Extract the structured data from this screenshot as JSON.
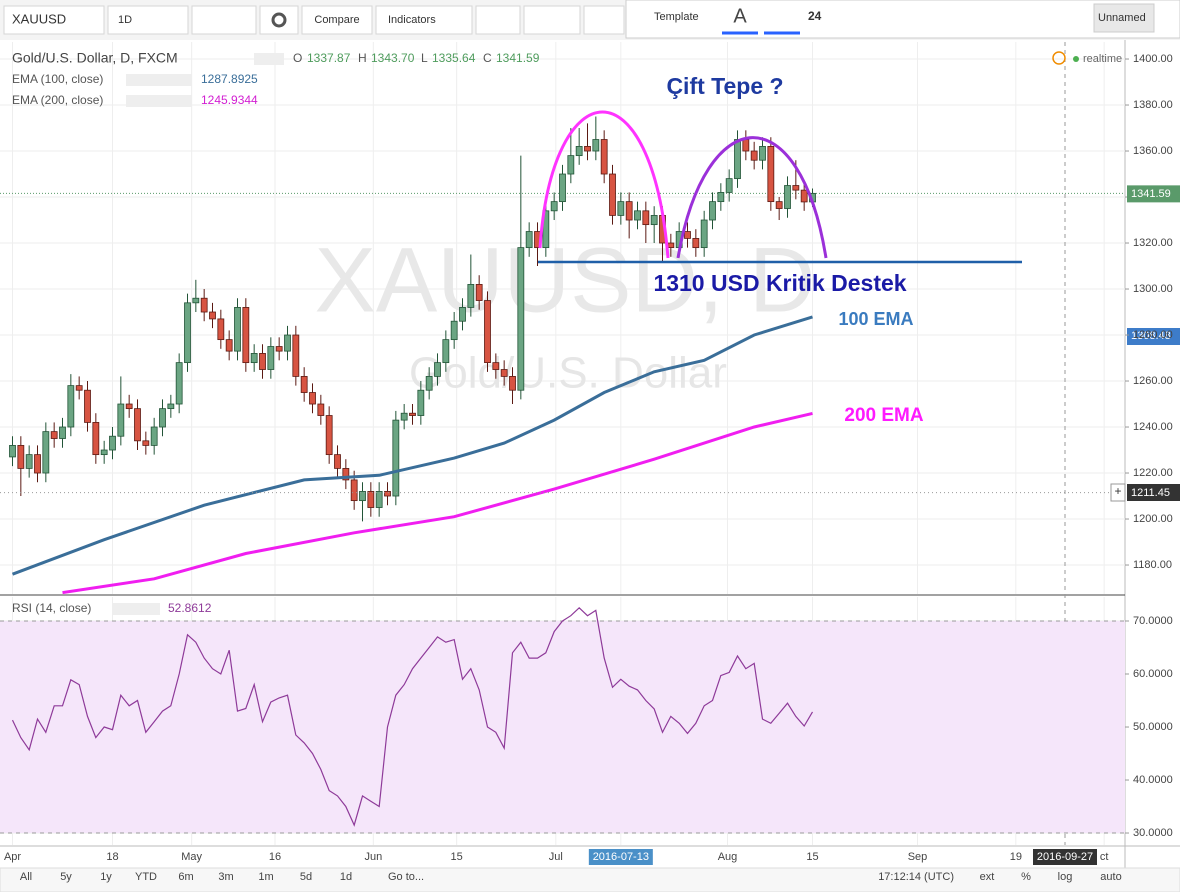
{
  "toolbar": {
    "symbol": "XAUUSD",
    "interval": "1D",
    "compare": "Compare",
    "indicators": "Indicators",
    "template": "Template",
    "font_size": "24",
    "layout_name": "Unnamed"
  },
  "legend": {
    "title": "Gold/U.S. Dollar, D, FXCM",
    "ohlc": [
      {
        "label": "O",
        "value": "1337.87"
      },
      {
        "label": "H",
        "value": "1343.70"
      },
      {
        "label": "L",
        "value": "1335.64"
      },
      {
        "label": "C",
        "value": "1341.59"
      }
    ],
    "ema100": {
      "name": "EMA (100, close)",
      "value": "1287.8925"
    },
    "ema200": {
      "name": "EMA (200, close)",
      "value": "1245.9344"
    },
    "rsi": {
      "name": "RSI (14, close)",
      "value": "52.8612"
    }
  },
  "status": "realtime",
  "watermark": {
    "symbol": "XAUUSD, D",
    "description": "Gold/U.S. Dollar"
  },
  "axis_labels": {
    "ema_label": "1308.48"
  },
  "bottom_bar": {
    "ranges": [
      "All",
      "5y",
      "1y",
      "YTD",
      "6m",
      "3m",
      "1m",
      "5d",
      "1d"
    ],
    "goto": "Go to...",
    "time": "17:12:14 (UTC)",
    "options": [
      "ext",
      "%",
      "log",
      "auto"
    ]
  },
  "chart_data": [
    {
      "type": "candlestick",
      "title": "Çift Tepe ?",
      "annotation": "1310 USD Kritik Destek",
      "up_color": "#6ba583",
      "down_color": "#d75442",
      "open": [
        1227,
        1232,
        1222,
        1228,
        1220,
        1238,
        1235,
        1240,
        1258,
        1256,
        1242,
        1228,
        1230,
        1236,
        1250,
        1248,
        1234,
        1232,
        1240,
        1248,
        1250,
        1268,
        1294,
        1296,
        1290,
        1287,
        1278,
        1273,
        1292,
        1268,
        1272,
        1265,
        1275,
        1273,
        1280,
        1262,
        1255,
        1250,
        1245,
        1228,
        1222,
        1217,
        1208,
        1212,
        1205,
        1212,
        1210,
        1243,
        1246,
        1245,
        1256,
        1262,
        1268,
        1278,
        1286,
        1292,
        1302,
        1295,
        1268,
        1265,
        1262,
        1256,
        1318,
        1325,
        1318,
        1334,
        1338,
        1350,
        1358,
        1362,
        1360,
        1365,
        1350,
        1332,
        1338,
        1330,
        1334,
        1328,
        1332,
        1320,
        1318,
        1325,
        1322,
        1318,
        1330,
        1338,
        1342,
        1348,
        1365,
        1360,
        1356,
        1362,
        1338,
        1335,
        1345,
        1343,
        1337.87
      ],
      "high": [
        1236,
        1236,
        1232,
        1232,
        1242,
        1242,
        1244,
        1263,
        1262,
        1260,
        1246,
        1234,
        1240,
        1262,
        1254,
        1252,
        1238,
        1244,
        1252,
        1254,
        1272,
        1298,
        1304,
        1300,
        1294,
        1291,
        1282,
        1296,
        1296,
        1276,
        1276,
        1279,
        1279,
        1284,
        1284,
        1266,
        1259,
        1254,
        1249,
        1232,
        1226,
        1221,
        1216,
        1216,
        1216,
        1216,
        1247,
        1250,
        1250,
        1260,
        1266,
        1272,
        1282,
        1290,
        1296,
        1315,
        1306,
        1299,
        1272,
        1269,
        1266,
        1358,
        1329,
        1329,
        1338,
        1342,
        1354,
        1370,
        1370,
        1372,
        1375,
        1369,
        1354,
        1342,
        1342,
        1338,
        1338,
        1336,
        1336,
        1324,
        1329,
        1329,
        1326,
        1334,
        1342,
        1346,
        1352,
        1369,
        1369,
        1364,
        1366,
        1366,
        1340,
        1349,
        1356,
        1347,
        1343.7
      ],
      "low": [
        1223,
        1210,
        1218,
        1216,
        1216,
        1231,
        1231,
        1236,
        1252,
        1238,
        1224,
        1224,
        1226,
        1232,
        1244,
        1230,
        1228,
        1228,
        1236,
        1244,
        1246,
        1264,
        1290,
        1286,
        1283,
        1274,
        1269,
        1269,
        1264,
        1264,
        1261,
        1261,
        1269,
        1269,
        1258,
        1251,
        1246,
        1241,
        1224,
        1218,
        1213,
        1204,
        1199,
        1201,
        1201,
        1206,
        1206,
        1239,
        1241,
        1241,
        1252,
        1258,
        1264,
        1274,
        1282,
        1288,
        1291,
        1264,
        1261,
        1258,
        1250,
        1252,
        1314,
        1310,
        1314,
        1330,
        1334,
        1346,
        1354,
        1356,
        1356,
        1346,
        1328,
        1328,
        1322,
        1326,
        1320,
        1320,
        1312,
        1314,
        1314,
        1318,
        1314,
        1314,
        1326,
        1334,
        1338,
        1344,
        1356,
        1352,
        1352,
        1334,
        1330,
        1331,
        1339,
        1334,
        1335.64
      ],
      "close": [
        1232,
        1222,
        1228,
        1220,
        1238,
        1235,
        1240,
        1258,
        1256,
        1242,
        1228,
        1230,
        1236,
        1250,
        1248,
        1234,
        1232,
        1240,
        1248,
        1250,
        1268,
        1294,
        1296,
        1290,
        1287,
        1278,
        1273,
        1292,
        1268,
        1272,
        1265,
        1275,
        1273,
        1280,
        1262,
        1255,
        1250,
        1245,
        1228,
        1222,
        1217,
        1208,
        1212,
        1205,
        1212,
        1210,
        1243,
        1246,
        1245,
        1256,
        1262,
        1268,
        1278,
        1286,
        1292,
        1302,
        1295,
        1268,
        1265,
        1262,
        1256,
        1318,
        1325,
        1318,
        1334,
        1338,
        1350,
        1358,
        1362,
        1360,
        1365,
        1350,
        1332,
        1338,
        1330,
        1334,
        1328,
        1332,
        1320,
        1318,
        1325,
        1322,
        1318,
        1330,
        1338,
        1342,
        1348,
        1365,
        1360,
        1356,
        1362,
        1338,
        1335,
        1345,
        1343,
        1337.87,
        1341.59
      ],
      "series": [
        {
          "name": "100 EMA",
          "color": "#3a6e99",
          "x": [
            0,
            11,
            23,
            35,
            44,
            53,
            59,
            65,
            71,
            77,
            83,
            89,
            96
          ],
          "values": [
            1176,
            1191,
            1206,
            1217,
            1219,
            1226.5,
            1233,
            1243,
            1255,
            1264,
            1269,
            1280,
            1287.8925
          ]
        },
        {
          "name": "200 EMA",
          "color": "#f01ef0",
          "x": [
            6,
            17,
            28,
            41,
            53,
            65,
            77,
            89,
            96
          ],
          "values": [
            1168,
            1174,
            1185,
            1194,
            1201,
            1213,
            1226,
            1240,
            1245.9344
          ]
        }
      ],
      "crosshair": {
        "x": {
          "value": 126.3,
          "label": "2016-09-27"
        },
        "y": 1211.45
      },
      "xlim": [
        -1.5,
        133.5
      ],
      "xticks": [
        {
          "value": 0,
          "label": "Apr"
        },
        {
          "value": 12,
          "label": "18"
        },
        {
          "value": 21.5,
          "label": "May"
        },
        {
          "value": 31.5,
          "label": "16"
        },
        {
          "value": 43.3,
          "label": "Jun"
        },
        {
          "value": 53.3,
          "label": "15"
        },
        {
          "value": 65.2,
          "label": "Jul"
        },
        {
          "value": 73,
          "label": "2016-07-13",
          "highlight": true
        },
        {
          "value": 85.8,
          "label": "Aug"
        },
        {
          "value": 96,
          "label": "15"
        },
        {
          "value": 108.6,
          "label": "Sep"
        },
        {
          "value": 120.4,
          "label": "19"
        },
        {
          "value": 131,
          "label": "ct"
        }
      ],
      "ylim": [
        1167.4,
        1407.4
      ],
      "yticks": [
        {
          "value": 1180,
          "label": "1180.00"
        },
        {
          "value": 1200,
          "label": "1200.00"
        },
        {
          "value": 1220,
          "label": "1220.00"
        },
        {
          "value": 1240,
          "label": "1240.00"
        },
        {
          "value": 1260,
          "label": "1260.00"
        },
        {
          "value": 1280,
          "label": "1280.00"
        },
        {
          "value": 1300,
          "label": "1300.00"
        },
        {
          "value": 1320,
          "label": "1320.00"
        },
        {
          "value": 1340,
          "label": "1340.00"
        },
        {
          "value": 1360,
          "label": "1360.00"
        },
        {
          "value": 1380,
          "label": "1380.00"
        },
        {
          "value": 1400,
          "label": "1400.00"
        }
      ],
      "grid": true
    },
    {
      "type": "line",
      "band_color": "#f5e6fa",
      "series": [
        {
          "color": "#8e3a99",
          "values": [
            51.3,
            48,
            45.7,
            51.5,
            49,
            54,
            54,
            58.9,
            58,
            52,
            48,
            50,
            49.5,
            56,
            54,
            55,
            49,
            51,
            53,
            54,
            60,
            67.4,
            66,
            63,
            61,
            60,
            64.5,
            53,
            53.5,
            58,
            51,
            54.7,
            55.5,
            56,
            48.5,
            47,
            45,
            42,
            38,
            37,
            35,
            31.5,
            37,
            36,
            35,
            50,
            56,
            58,
            61,
            63,
            65,
            67,
            66,
            66.5,
            59,
            61,
            57,
            50,
            49,
            46,
            64,
            66,
            63,
            63,
            64,
            68,
            70,
            71,
            72.5,
            71,
            72,
            63,
            57.5,
            59,
            57.7,
            57,
            55,
            53.4,
            49,
            52,
            50.7,
            48.8,
            50.7,
            54,
            55,
            59.7,
            60.3,
            63.4,
            61,
            62,
            51.5,
            50.7,
            52.6,
            54.5,
            52,
            50.2,
            52.8612
          ]
        }
      ],
      "xlim": [
        -1.5,
        133.5
      ],
      "ylim": [
        27.74,
        74.53
      ],
      "yticks": [
        {
          "value": 30,
          "label": "30.0000"
        },
        {
          "value": 40,
          "label": "40.0000"
        },
        {
          "value": 50,
          "label": "50.0000"
        },
        {
          "value": 60,
          "label": "60.0000"
        },
        {
          "value": 70,
          "label": "70.0000"
        }
      ],
      "grid": true
    }
  ]
}
